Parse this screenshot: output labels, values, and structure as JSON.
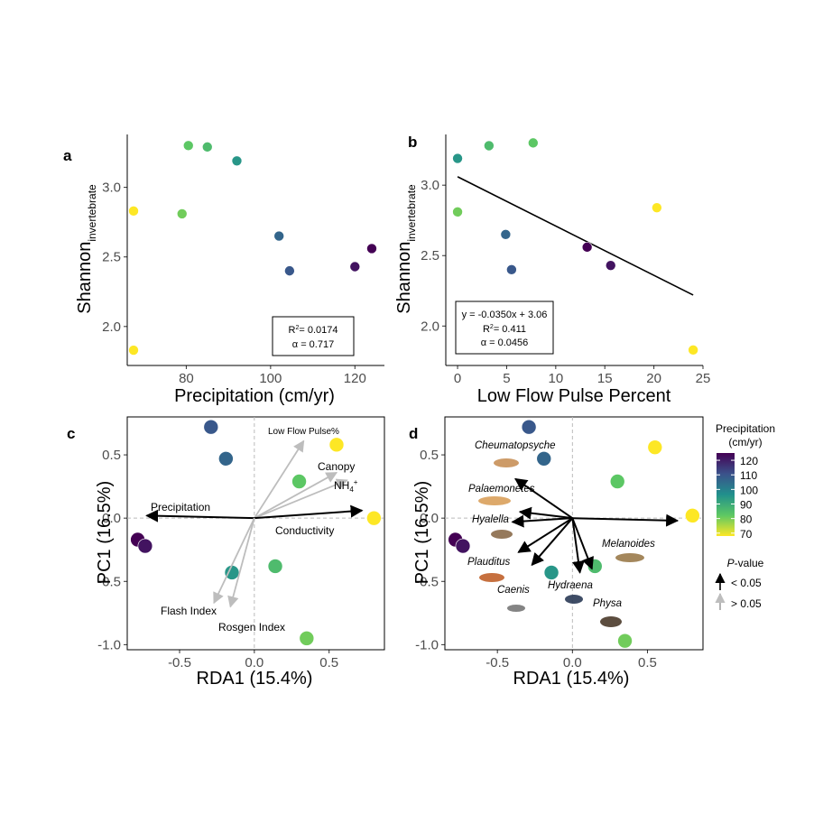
{
  "colors": {
    "viridis": [
      "#440154",
      "#3b528b",
      "#21908c",
      "#5dc863",
      "#fde725"
    ],
    "arrow_sig": "#000000",
    "arrow_ns": "#bdbdbd"
  },
  "chart_data": [
    {
      "panel": "a",
      "type": "scatter",
      "xlabel": "Precipitation (cm/yr)",
      "ylabel": "Shannon",
      "ylabel_sub": "invertebrate",
      "xlim": [
        66,
        127
      ],
      "ylim": [
        1.72,
        3.38
      ],
      "xticks": [
        80,
        100,
        120
      ],
      "yticks": [
        "2.0",
        "2.5",
        "3.0"
      ],
      "points": [
        {
          "x": 67.5,
          "y": 2.83,
          "c": 70
        },
        {
          "x": 67.5,
          "y": 1.83,
          "c": 70
        },
        {
          "x": 79,
          "y": 2.81,
          "c": 82
        },
        {
          "x": 80.5,
          "y": 3.3,
          "c": 84
        },
        {
          "x": 85,
          "y": 3.29,
          "c": 87
        },
        {
          "x": 92,
          "y": 3.19,
          "c": 96
        },
        {
          "x": 102,
          "y": 2.65,
          "c": 107
        },
        {
          "x": 104.5,
          "y": 2.4,
          "c": 110
        },
        {
          "x": 120,
          "y": 2.43,
          "c": 122
        },
        {
          "x": 124,
          "y": 2.56,
          "c": 125
        }
      ],
      "stats": {
        "r2_label": "R",
        "r2_value": "= 0.0174",
        "alpha_label": "α = 0.717"
      }
    },
    {
      "panel": "b",
      "type": "scatter",
      "xlabel": "Low Flow Pulse Percent",
      "ylabel": "Shannon",
      "ylabel_sub": "invertebrate",
      "xlim": [
        -1.2,
        25
      ],
      "ylim": [
        1.72,
        3.36
      ],
      "xticks": [
        0,
        5,
        10,
        15,
        20,
        25
      ],
      "yticks": [
        "2.0",
        "2.5",
        "3.0"
      ],
      "points": [
        {
          "x": 0,
          "y": 3.19,
          "c": 96
        },
        {
          "x": 0,
          "y": 2.81,
          "c": 82
        },
        {
          "x": 3.2,
          "y": 3.28,
          "c": 87
        },
        {
          "x": 7.7,
          "y": 3.3,
          "c": 84
        },
        {
          "x": 4.9,
          "y": 2.65,
          "c": 107
        },
        {
          "x": 5.5,
          "y": 2.4,
          "c": 110
        },
        {
          "x": 13.2,
          "y": 2.56,
          "c": 125
        },
        {
          "x": 15.6,
          "y": 2.43,
          "c": 122
        },
        {
          "x": 20.3,
          "y": 2.84,
          "c": 70
        },
        {
          "x": 24,
          "y": 1.83,
          "c": 70
        }
      ],
      "fit": {
        "slope": -0.035,
        "intercept": 3.06,
        "x0": 0,
        "x1": 24
      },
      "stats": {
        "eq": "y = -0.0350x + 3.06",
        "r2_label": "R",
        "r2_value": "= 0.411",
        "alpha_label": "α = 0.0456"
      }
    },
    {
      "panel": "c",
      "type": "scatter",
      "xlabel": "RDA1 (15.4%)",
      "ylabel": "PC1 (16.5%)",
      "xlim": [
        -0.85,
        0.87
      ],
      "ylim": [
        -1.04,
        0.8
      ],
      "xticks": [
        "-0.5",
        "0.0",
        "0.5"
      ],
      "yticks": [
        "-1.0",
        "-0.5",
        "0.0",
        "0.5"
      ],
      "points": [
        {
          "x": -0.29,
          "y": 0.72,
          "c": 110
        },
        {
          "x": -0.19,
          "y": 0.47,
          "c": 107
        },
        {
          "x": 0.55,
          "y": 0.58,
          "c": 70
        },
        {
          "x": 0.3,
          "y": 0.29,
          "c": 84
        },
        {
          "x": 0.8,
          "y": 0.0,
          "c": 70
        },
        {
          "x": -0.78,
          "y": -0.17,
          "c": 125
        },
        {
          "x": -0.73,
          "y": -0.22,
          "c": 122
        },
        {
          "x": -0.15,
          "y": -0.43,
          "c": 96
        },
        {
          "x": 0.14,
          "y": -0.38,
          "c": 87
        },
        {
          "x": 0.35,
          "y": -0.95,
          "c": 82
        }
      ],
      "vectors": [
        {
          "name": "Low Flow Pulse%",
          "x": 0.33,
          "y": 0.61,
          "sig": false
        },
        {
          "name": "Canopy",
          "x": 0.55,
          "y": 0.36,
          "sig": false
        },
        {
          "name": "NH",
          "x": 0.62,
          "y": 0.3,
          "sig": false
        },
        {
          "name": "Precipitation",
          "x": -0.72,
          "y": 0.02,
          "sig": true
        },
        {
          "name": "Conductivity",
          "x": 0.72,
          "y": 0.06,
          "sig": true
        },
        {
          "name": "Flash Index",
          "x": -0.27,
          "y": -0.67,
          "sig": false
        },
        {
          "name": "Rosgen Index",
          "x": -0.16,
          "y": -0.7,
          "sig": false
        }
      ],
      "nh4_sub": "4",
      "nh4_sup": "+"
    },
    {
      "panel": "d",
      "type": "scatter",
      "xlabel": "RDA1 (15.4%)",
      "ylabel": "PC1 (16.5%)",
      "xlim": [
        -0.85,
        0.87
      ],
      "ylim": [
        -1.04,
        0.8
      ],
      "xticks": [
        "-0.5",
        "0.0",
        "0.5"
      ],
      "yticks": [
        "-1.0",
        "-0.5",
        "0.0",
        "0.5"
      ],
      "points": [
        {
          "x": -0.29,
          "y": 0.72,
          "c": 110
        },
        {
          "x": -0.19,
          "y": 0.47,
          "c": 107
        },
        {
          "x": 0.55,
          "y": 0.56,
          "c": 70
        },
        {
          "x": 0.3,
          "y": 0.29,
          "c": 84
        },
        {
          "x": 0.8,
          "y": 0.02,
          "c": 70
        },
        {
          "x": -0.78,
          "y": -0.17,
          "c": 125
        },
        {
          "x": -0.73,
          "y": -0.22,
          "c": 122
        },
        {
          "x": -0.14,
          "y": -0.43,
          "c": 96
        },
        {
          "x": 0.15,
          "y": -0.38,
          "c": 87
        },
        {
          "x": 0.35,
          "y": -0.97,
          "c": 82
        }
      ],
      "vectors": [
        {
          "name": "Cheumatopsyche",
          "x": -0.38,
          "y": 0.31,
          "sig": true
        },
        {
          "name": "Palaemonetes",
          "x": -0.35,
          "y": 0.05,
          "sig": true
        },
        {
          "name": "Hyalella",
          "x": -0.4,
          "y": -0.03,
          "sig": true
        },
        {
          "name": "Plauditus",
          "x": -0.36,
          "y": -0.27,
          "sig": true
        },
        {
          "name": "Caenis",
          "x": -0.27,
          "y": -0.37,
          "sig": true
        },
        {
          "name": "Hydraena",
          "x": 0.05,
          "y": -0.43,
          "sig": true
        },
        {
          "name": "Physa",
          "x": 0.13,
          "y": -0.4,
          "sig": true
        },
        {
          "name": "Melanoides",
          "x": 0.7,
          "y": -0.02,
          "sig": true
        }
      ]
    }
  ],
  "legend": {
    "title_line1": "Precipitation",
    "title_line2": "(cm/yr)",
    "ticks": [
      "120",
      "110",
      "100",
      "90",
      "80",
      "70"
    ],
    "pvalue_title": "P-value",
    "sig_label": "< 0.05",
    "ns_label": "> 0.05"
  }
}
